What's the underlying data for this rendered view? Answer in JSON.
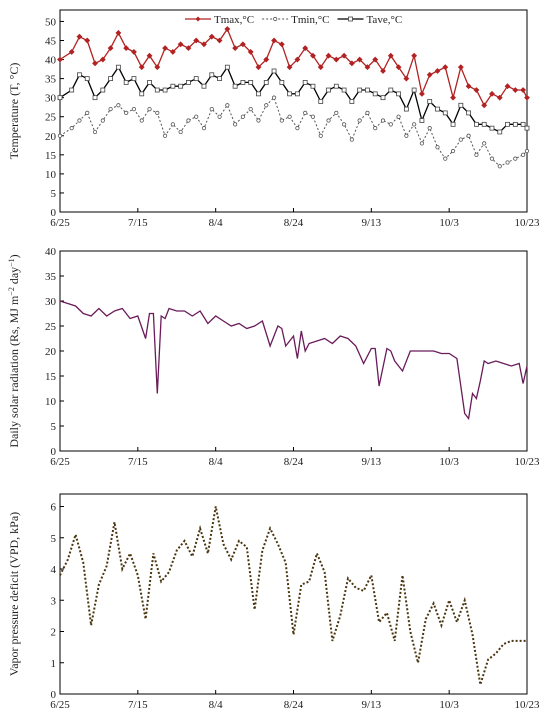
{
  "chart_data": [
    {
      "type": "line",
      "ylabel": "Temperature (T, °C)",
      "xlabel": "",
      "x_ticks": [
        "6/25",
        "7/15",
        "8/4",
        "8/24",
        "9/13",
        "10/3",
        "10/23"
      ],
      "y_ticks": [
        "0",
        "5",
        "10",
        "15",
        "20",
        "25",
        "30",
        "35",
        "40",
        "45",
        "50"
      ],
      "ylim": [
        0,
        53
      ],
      "x_unit": "days from 6/25",
      "xlim": [
        0,
        120
      ],
      "legend_position": "top-right",
      "grid": false,
      "series": [
        {
          "name": "Tmax,°C",
          "color": "#b22222",
          "x": [
            0,
            3,
            5,
            7,
            9,
            11,
            13,
            15,
            17,
            19,
            21,
            23,
            25,
            27,
            29,
            31,
            33,
            35,
            37,
            39,
            41,
            43,
            45,
            47,
            49,
            51,
            53,
            55,
            57,
            59,
            61,
            63,
            65,
            67,
            69,
            71,
            73,
            75,
            77,
            79,
            81,
            83,
            85,
            87,
            89,
            91,
            93,
            95,
            97,
            99,
            101,
            103,
            105,
            107,
            109,
            111,
            113,
            115,
            117,
            119,
            120
          ],
          "values": [
            40,
            42,
            46,
            45,
            39,
            40,
            43,
            47,
            43,
            42,
            38,
            41,
            38,
            43,
            42,
            44,
            43,
            45,
            44,
            46,
            45,
            48,
            43,
            44,
            42,
            38,
            40,
            45,
            44,
            38,
            40,
            43,
            41,
            38,
            41,
            40,
            41,
            39,
            40,
            38,
            40,
            37,
            41,
            38,
            35,
            41,
            31,
            36,
            37,
            38,
            30,
            38,
            33,
            32,
            28,
            31,
            30,
            33,
            32,
            32,
            30
          ]
        },
        {
          "name": "Tmin,°C",
          "color": "#555555",
          "x": [
            0,
            3,
            5,
            7,
            9,
            11,
            13,
            15,
            17,
            19,
            21,
            23,
            25,
            27,
            29,
            31,
            33,
            35,
            37,
            39,
            41,
            43,
            45,
            47,
            49,
            51,
            53,
            55,
            57,
            59,
            61,
            63,
            65,
            67,
            69,
            71,
            73,
            75,
            77,
            79,
            81,
            83,
            85,
            87,
            89,
            91,
            93,
            95,
            97,
            99,
            101,
            103,
            105,
            107,
            109,
            111,
            113,
            115,
            117,
            119,
            120
          ],
          "values": [
            20,
            22,
            24,
            26,
            21,
            24,
            27,
            28,
            26,
            27,
            24,
            27,
            26,
            20,
            23,
            21,
            24,
            25,
            22,
            27,
            25,
            28,
            23,
            25,
            27,
            24,
            28,
            30,
            24,
            25,
            22,
            26,
            25,
            20,
            24,
            26,
            23,
            19,
            24,
            26,
            22,
            24,
            23,
            25,
            20,
            23,
            18,
            22,
            17,
            14,
            16,
            19,
            20,
            15,
            18,
            14,
            12,
            13,
            14,
            15,
            16
          ]
        },
        {
          "name": "Tave,°C",
          "color": "#000000",
          "x": [
            0,
            3,
            5,
            7,
            9,
            11,
            13,
            15,
            17,
            19,
            21,
            23,
            25,
            27,
            29,
            31,
            33,
            35,
            37,
            39,
            41,
            43,
            45,
            47,
            49,
            51,
            53,
            55,
            57,
            59,
            61,
            63,
            65,
            67,
            69,
            71,
            73,
            75,
            77,
            79,
            81,
            83,
            85,
            87,
            89,
            91,
            93,
            95,
            97,
            99,
            101,
            103,
            105,
            107,
            109,
            111,
            113,
            115,
            117,
            119,
            120
          ],
          "values": [
            30,
            32,
            36,
            35,
            30,
            32,
            35,
            38,
            34,
            35,
            31,
            34,
            32,
            32,
            33,
            33,
            34,
            35,
            33,
            36,
            35,
            38,
            33,
            34,
            34,
            31,
            34,
            37,
            34,
            31,
            31,
            34,
            33,
            29,
            32,
            33,
            32,
            29,
            32,
            32,
            31,
            30,
            32,
            31,
            27,
            32,
            24,
            29,
            27,
            26,
            23,
            28,
            26,
            23,
            23,
            22,
            21,
            23,
            23,
            23,
            22
          ]
        }
      ]
    },
    {
      "type": "line",
      "ylabel": "Daily solar radiation (Rs, MJ m−2 day−1)",
      "xlabel": "",
      "x_ticks": [
        "6/25",
        "7/15",
        "8/4",
        "8/24",
        "9/13",
        "10/3",
        "10/23"
      ],
      "y_ticks": [
        "0",
        "5",
        "10",
        "15",
        "20",
        "25",
        "30",
        "35",
        "40"
      ],
      "ylim": [
        0,
        40
      ],
      "x_unit": "days from 6/25",
      "xlim": [
        0,
        120
      ],
      "grid": false,
      "series": [
        {
          "name": "",
          "color": "#6a1b5a",
          "x": [
            0,
            2,
            4,
            6,
            8,
            10,
            12,
            14,
            16,
            18,
            20,
            22,
            23,
            24,
            25,
            26,
            27,
            28,
            30,
            32,
            34,
            36,
            38,
            40,
            42,
            44,
            46,
            48,
            50,
            52,
            54,
            56,
            57,
            58,
            60,
            61,
            62,
            63,
            64,
            66,
            68,
            70,
            72,
            74,
            76,
            78,
            80,
            81,
            82,
            84,
            85,
            86,
            88,
            90,
            92,
            94,
            96,
            98,
            100,
            102,
            104,
            105,
            106,
            107,
            108,
            109,
            110,
            112,
            114,
            116,
            118,
            119,
            120
          ],
          "values": [
            30,
            29.5,
            29,
            27.5,
            27,
            28.5,
            27,
            28,
            28.5,
            26.5,
            27,
            22.5,
            27.5,
            27.5,
            11.5,
            27,
            26.5,
            28.5,
            28,
            28,
            27,
            28,
            25.5,
            27,
            26,
            25,
            25.5,
            24.5,
            25,
            26,
            21,
            25,
            24.5,
            21,
            23,
            18.5,
            24,
            20,
            21.5,
            22,
            22.5,
            21.5,
            23,
            22.5,
            21,
            17.5,
            20.5,
            20.5,
            13,
            20.5,
            20,
            18,
            16,
            20,
            20,
            20,
            20,
            19.5,
            19.5,
            18.5,
            7.5,
            6.5,
            11.5,
            10.5,
            14,
            18,
            17.5,
            18,
            17.5,
            17,
            17.5,
            13.5,
            17
          ]
        }
      ]
    },
    {
      "type": "line",
      "ylabel": "Vapor pressure deficit (VPD, kPa)",
      "xlabel": "",
      "x_ticks": [
        "6/25",
        "7/15",
        "8/4",
        "8/24",
        "9/13",
        "10/3",
        "10/23"
      ],
      "y_ticks": [
        "0",
        "1",
        "2",
        "3",
        "4",
        "5",
        "6"
      ],
      "ylim": [
        0,
        6.4
      ],
      "x_unit": "days from 6/25",
      "xlim": [
        0,
        120
      ],
      "grid": false,
      "series": [
        {
          "name": "",
          "color": "#4a3510",
          "x": [
            0,
            2,
            4,
            6,
            8,
            10,
            12,
            14,
            16,
            18,
            20,
            22,
            24,
            26,
            28,
            30,
            32,
            34,
            36,
            38,
            40,
            42,
            44,
            46,
            48,
            50,
            52,
            54,
            56,
            58,
            60,
            62,
            64,
            66,
            68,
            70,
            72,
            74,
            76,
            78,
            80,
            82,
            84,
            86,
            88,
            90,
            92,
            94,
            96,
            98,
            100,
            102,
            104,
            106,
            108,
            110,
            112,
            114,
            116,
            118,
            120
          ],
          "values": [
            3.8,
            4.3,
            5.1,
            4.2,
            2.2,
            3.5,
            4.1,
            5.5,
            4.0,
            4.5,
            3.8,
            2.4,
            4.5,
            3.6,
            3.9,
            4.6,
            4.9,
            4.4,
            5.3,
            4.5,
            6.0,
            4.8,
            4.3,
            4.9,
            4.7,
            2.7,
            4.6,
            5.3,
            4.8,
            4.2,
            1.9,
            3.5,
            3.6,
            4.5,
            3.9,
            1.7,
            2.5,
            3.7,
            3.4,
            3.3,
            3.8,
            2.3,
            2.6,
            1.7,
            3.8,
            2.0,
            1.0,
            2.4,
            2.9,
            2.2,
            3.0,
            2.3,
            3.0,
            1.9,
            0.3,
            1.1,
            1.3,
            1.6,
            1.7,
            1.7,
            1.7
          ]
        }
      ]
    }
  ]
}
